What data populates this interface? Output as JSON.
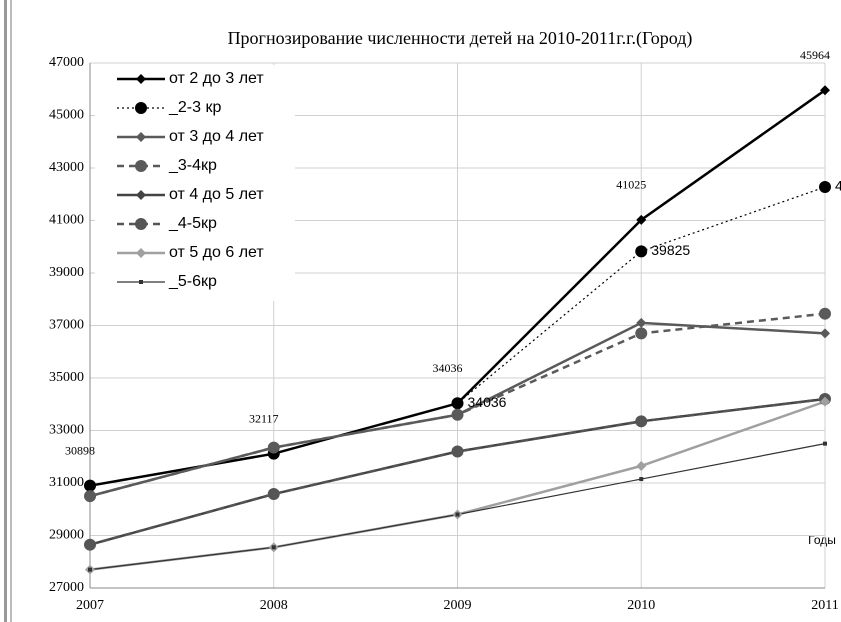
{
  "chart_data": {
    "type": "line",
    "title": "Прогнозирование численности детей на 2010-2011г.г.(Город)",
    "x_label": "Годы",
    "x": [
      2007,
      2008,
      2009,
      2010,
      2011
    ],
    "xlim": [
      2007,
      2011
    ],
    "xticks": [
      2007,
      2008,
      2009,
      2010,
      2011
    ],
    "ylim": [
      27000,
      47000
    ],
    "yticks": [
      27000,
      29000,
      31000,
      33000,
      35000,
      37000,
      39000,
      41000,
      43000,
      45000,
      47000
    ],
    "grid": true,
    "legend": "upper left",
    "series": [
      {
        "name": "от 2 до 3 лет",
        "color": "#000000",
        "style": "solid",
        "marker": "diamond",
        "width": 2.5,
        "values": [
          30898,
          32117,
          34036,
          41025,
          45964
        ]
      },
      {
        "name": "_2-3 кр",
        "color": "#000000",
        "style": "dotted",
        "marker": "circle",
        "width": 1.2,
        "values": [
          30898,
          32117,
          34036,
          39825,
          42275
        ]
      },
      {
        "name": "от 3 до 4 лет",
        "color": "#5a5a5a",
        "style": "solid",
        "marker": "diamond",
        "width": 2.5,
        "values": [
          30500,
          32350,
          33600,
          37100,
          36700
        ]
      },
      {
        "name": "_3-4кр",
        "color": "#5a5a5a",
        "style": "dashed",
        "marker": "circle",
        "width": 2.5,
        "values": [
          30500,
          32350,
          33600,
          36700,
          37450
        ]
      },
      {
        "name": "от 4 до 5 лет",
        "color": "#444444",
        "style": "solid",
        "marker": "diamond",
        "width": 2.5,
        "values": [
          28650,
          30580,
          32200,
          33350,
          34200
        ]
      },
      {
        "name": "_4-5кр",
        "color": "#555555",
        "style": "dashed",
        "marker": "circle",
        "width": 2.5,
        "values": [
          28650,
          30580,
          32200,
          33350,
          34200
        ]
      },
      {
        "name": "от 5 до 6 лет",
        "color": "#a0a0a0",
        "style": "solid",
        "marker": "diamond",
        "width": 2.5,
        "values": [
          27700,
          28550,
          29800,
          31650,
          34100
        ]
      },
      {
        "name": "_5-6кр",
        "color": "#333333",
        "style": "solid",
        "marker": "square",
        "width": 1.2,
        "values": [
          27700,
          28550,
          29800,
          31150,
          32500
        ]
      }
    ]
  }
}
